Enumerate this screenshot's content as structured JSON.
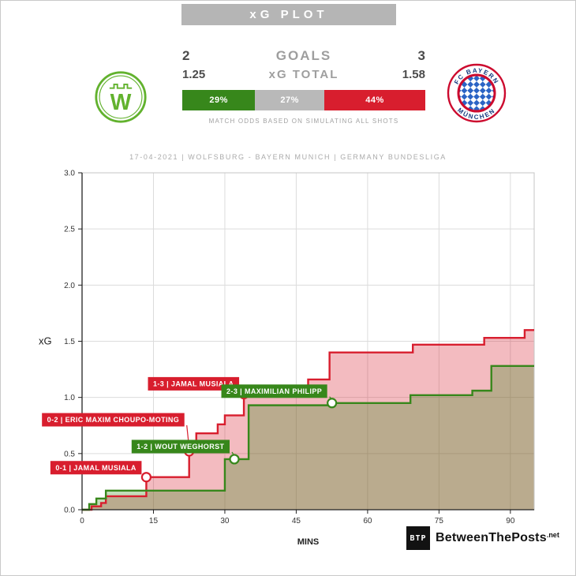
{
  "header": {
    "title": "xG PLOT",
    "match_info": "17-04-2021 | WOLFSBURG - BAYERN MUNICH | GERMANY BUNDESLIGA"
  },
  "scoreboard": {
    "home_team": "Wolfsburg",
    "away_team": "Bayern Munich",
    "goals_label": "GOALS",
    "home_goals": "2",
    "away_goals": "3",
    "xg_label": "xG TOTAL",
    "home_xg": "1.25",
    "away_xg": "1.58",
    "odds": {
      "home_pct": 29,
      "draw_pct": 27,
      "away_pct": 44,
      "home_label": "29%",
      "draw_label": "27%",
      "away_label": "44%"
    },
    "odds_caption": "MATCH ODDS BASED ON SIMULATING ALL SHOTS"
  },
  "logos": {
    "wolfsburg_monogram": "W",
    "bayern_ring_top": "FC BAYERN",
    "bayern_ring_bottom": "MÜNCHEN"
  },
  "footer": {
    "logo_monogram": "BTP",
    "brand": "BetweenThePosts",
    "tld": ".net"
  },
  "colors": {
    "home_green": "#37871b",
    "away_red": "#d81e2e",
    "draw_gray": "#b9b9b9",
    "title_gray": "#b5b5b5",
    "wolfsburg_green": "#62b22e",
    "bayern_red": "#cc0a2e",
    "bayern_blue": "#14387f",
    "bayern_lozenge_blue": "#2b64c5"
  },
  "chart_data": {
    "type": "line",
    "subtype": "step-after",
    "title": "xG PLOT",
    "xlabel": "MINS",
    "ylabel": "xG",
    "xlim": [
      0,
      95
    ],
    "ylim": [
      0,
      3.0
    ],
    "xticks": [
      0,
      15,
      30,
      45,
      60,
      75,
      90
    ],
    "yticks": [
      0.0,
      0.5,
      1.0,
      1.5,
      2.0,
      2.5,
      3.0
    ],
    "grid": true,
    "legend_position": "none",
    "series": [
      {
        "name": "Bayern Munich",
        "color": "#d81e2e",
        "fill_opacity": 0.3,
        "final_xg": 1.58,
        "points": [
          [
            0,
            0
          ],
          [
            2,
            0.03
          ],
          [
            4,
            0.06
          ],
          [
            5,
            0.12
          ],
          [
            13.5,
            0.29
          ],
          [
            22.5,
            0.52
          ],
          [
            24,
            0.68
          ],
          [
            28.5,
            0.76
          ],
          [
            30,
            0.84
          ],
          [
            34,
            1.03
          ],
          [
            35.5,
            1.07
          ],
          [
            47.5,
            1.16
          ],
          [
            52,
            1.4
          ],
          [
            69.5,
            1.47
          ],
          [
            84.5,
            1.53
          ],
          [
            93,
            1.6
          ]
        ]
      },
      {
        "name": "Wolfsburg",
        "color": "#37871b",
        "fill_opacity": 0.3,
        "final_xg": 1.25,
        "points": [
          [
            0,
            0
          ],
          [
            1.5,
            0.05
          ],
          [
            3,
            0.1
          ],
          [
            5,
            0.17
          ],
          [
            30,
            0.45
          ],
          [
            35,
            0.93
          ],
          [
            52.5,
            0.95
          ],
          [
            69,
            1.02
          ],
          [
            82,
            1.06
          ],
          [
            86,
            1.28
          ]
        ]
      }
    ],
    "goals": [
      {
        "label": "0-1 | JAMAL MUSIALA",
        "team": "away",
        "min": 13.5,
        "xg": 0.29,
        "label_dy": -12
      },
      {
        "label": "0-2 | ERIC MAXIM CHOUPO-MOTING",
        "team": "away",
        "min": 22.5,
        "xg": 0.52,
        "label_dy": -40
      },
      {
        "label": "1-2 | WOUT WEGHORST",
        "team": "home",
        "min": 32,
        "xg": 0.45,
        "label_dy": -16
      },
      {
        "label": "1-3 | JAMAL MUSIALA",
        "team": "away",
        "min": 34,
        "xg": 1.03,
        "label_dy": -13
      },
      {
        "label": "2-3 | MAXIMILIAN PHILIPP",
        "team": "home",
        "min": 52.5,
        "xg": 0.95,
        "label_dy": -15
      }
    ]
  }
}
